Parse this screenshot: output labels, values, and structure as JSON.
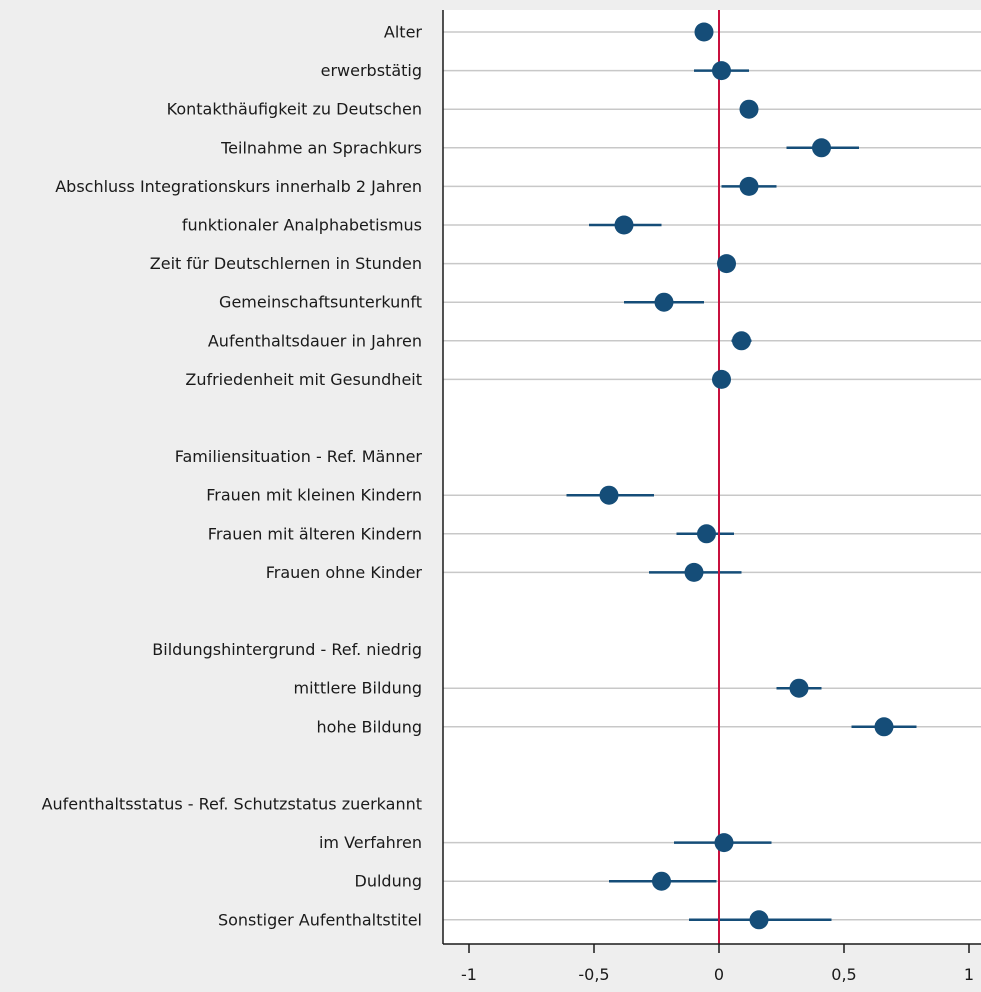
{
  "chart_data": {
    "type": "scatter",
    "subtype": "coefficient-plot",
    "title": "",
    "xlabel": "",
    "ylabel": "",
    "xlim": [
      -1.05,
      1.05
    ],
    "xticks": [
      -1,
      -0.5,
      0,
      0.5,
      1
    ],
    "xtick_labels": [
      "-1",
      "-0,5",
      "0",
      "0,5",
      "1"
    ],
    "reference_line_x": 0,
    "grid": "horizontal",
    "legend": "none",
    "colors": {
      "background": "#eeeeee",
      "plot_background": "#ffffff",
      "grid": "#c8c8c8",
      "point": "#154d78",
      "ci_line": "#154d78",
      "reference_line": "#c8103e",
      "axis": "#1a1a1a"
    },
    "rows": [
      {
        "label": "Alter",
        "estimate": -0.06,
        "ci": null
      },
      {
        "label": "erwerbstätig",
        "estimate": 0.01,
        "ci": [
          -0.1,
          0.12
        ]
      },
      {
        "label": "Kontakthäufigkeit zu Deutschen",
        "estimate": 0.12,
        "ci": null
      },
      {
        "label": "Teilnahme an Sprachkurs",
        "estimate": 0.41,
        "ci": [
          0.27,
          0.56
        ]
      },
      {
        "label": "Abschluss Integrationskurs innerhalb 2 Jahren",
        "estimate": 0.12,
        "ci": [
          0.01,
          0.23
        ]
      },
      {
        "label": "funktionaler Analphabetismus",
        "estimate": -0.38,
        "ci": [
          -0.52,
          -0.23
        ]
      },
      {
        "label": "Zeit für Deutschlernen in Stunden",
        "estimate": 0.03,
        "ci": null
      },
      {
        "label": "Gemeinschaftsunterkunft",
        "estimate": -0.22,
        "ci": [
          -0.38,
          -0.06
        ]
      },
      {
        "label": "Aufenthaltsdauer in Jahren",
        "estimate": 0.09,
        "ci": [
          0.05,
          0.13
        ]
      },
      {
        "label": "Zufriedenheit mit Gesundheit",
        "estimate": 0.01,
        "ci": null
      },
      {
        "label": "",
        "estimate": null,
        "ci": null
      },
      {
        "label": "Familiensituation - Ref. Männer",
        "estimate": null,
        "ci": null
      },
      {
        "label": "Frauen mit kleinen Kindern",
        "estimate": -0.44,
        "ci": [
          -0.61,
          -0.26
        ]
      },
      {
        "label": "Frauen mit älteren Kindern",
        "estimate": -0.05,
        "ci": [
          -0.17,
          0.06
        ]
      },
      {
        "label": "Frauen ohne Kinder",
        "estimate": -0.1,
        "ci": [
          -0.28,
          0.09
        ]
      },
      {
        "label": "",
        "estimate": null,
        "ci": null
      },
      {
        "label": "Bildungshintergrund - Ref. niedrig",
        "estimate": null,
        "ci": null
      },
      {
        "label": "mittlere Bildung",
        "estimate": 0.32,
        "ci": [
          0.23,
          0.41
        ]
      },
      {
        "label": "hohe Bildung",
        "estimate": 0.66,
        "ci": [
          0.53,
          0.79
        ]
      },
      {
        "label": "",
        "estimate": null,
        "ci": null
      },
      {
        "label": "Aufenthaltsstatus - Ref. Schutzstatus zuerkannt",
        "estimate": null,
        "ci": null
      },
      {
        "label": "im Verfahren",
        "estimate": 0.02,
        "ci": [
          -0.18,
          0.21
        ]
      },
      {
        "label": "Duldung",
        "estimate": -0.23,
        "ci": [
          -0.44,
          -0.01
        ]
      },
      {
        "label": "Sonstiger Aufenthaltstitel",
        "estimate": 0.16,
        "ci": [
          -0.12,
          0.45
        ]
      }
    ]
  }
}
